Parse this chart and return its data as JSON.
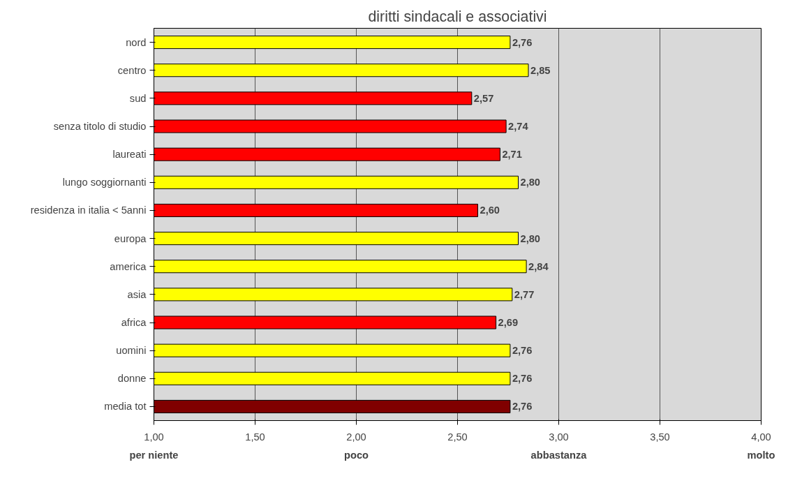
{
  "chart_data": {
    "type": "bar",
    "orientation": "horizontal",
    "title": "diritti sindacali e associativi",
    "categories": [
      "nord",
      "centro",
      "sud",
      "senza titolo di studio",
      "laureati",
      "lungo soggiornanti",
      "residenza in italia < 5anni",
      "europa",
      "america",
      "asia",
      "africa",
      "uomini",
      "donne",
      "media tot"
    ],
    "values": [
      2.76,
      2.85,
      2.57,
      2.74,
      2.71,
      2.8,
      2.6,
      2.8,
      2.84,
      2.77,
      2.69,
      2.76,
      2.76,
      2.76
    ],
    "colors": [
      "#ffff00",
      "#ffff00",
      "#ff0000",
      "#ff0000",
      "#ff0000",
      "#ffff00",
      "#ff0000",
      "#ffff00",
      "#ffff00",
      "#ffff00",
      "#ff0000",
      "#ffff00",
      "#ffff00",
      "#800000"
    ],
    "value_labels": [
      "2,76",
      "2,85",
      "2,57",
      "2,74",
      "2,71",
      "2,80",
      "2,60",
      "2,80",
      "2,84",
      "2,77",
      "2,69",
      "2,76",
      "2,76",
      "2,76"
    ],
    "xlim": [
      1,
      4
    ],
    "xticks": [
      {
        "value": 1,
        "label": "1,00"
      },
      {
        "value": 1.5,
        "label": "1,50"
      },
      {
        "value": 2,
        "label": "2,00"
      },
      {
        "value": 2.5,
        "label": "2,50"
      },
      {
        "value": 3,
        "label": "3,00"
      },
      {
        "value": 3.5,
        "label": "3,50"
      },
      {
        "value": 4,
        "label": "4,00"
      }
    ],
    "grid": "x",
    "annotations": [
      "per niente",
      "poco",
      "abbastanza",
      "molto"
    ]
  }
}
